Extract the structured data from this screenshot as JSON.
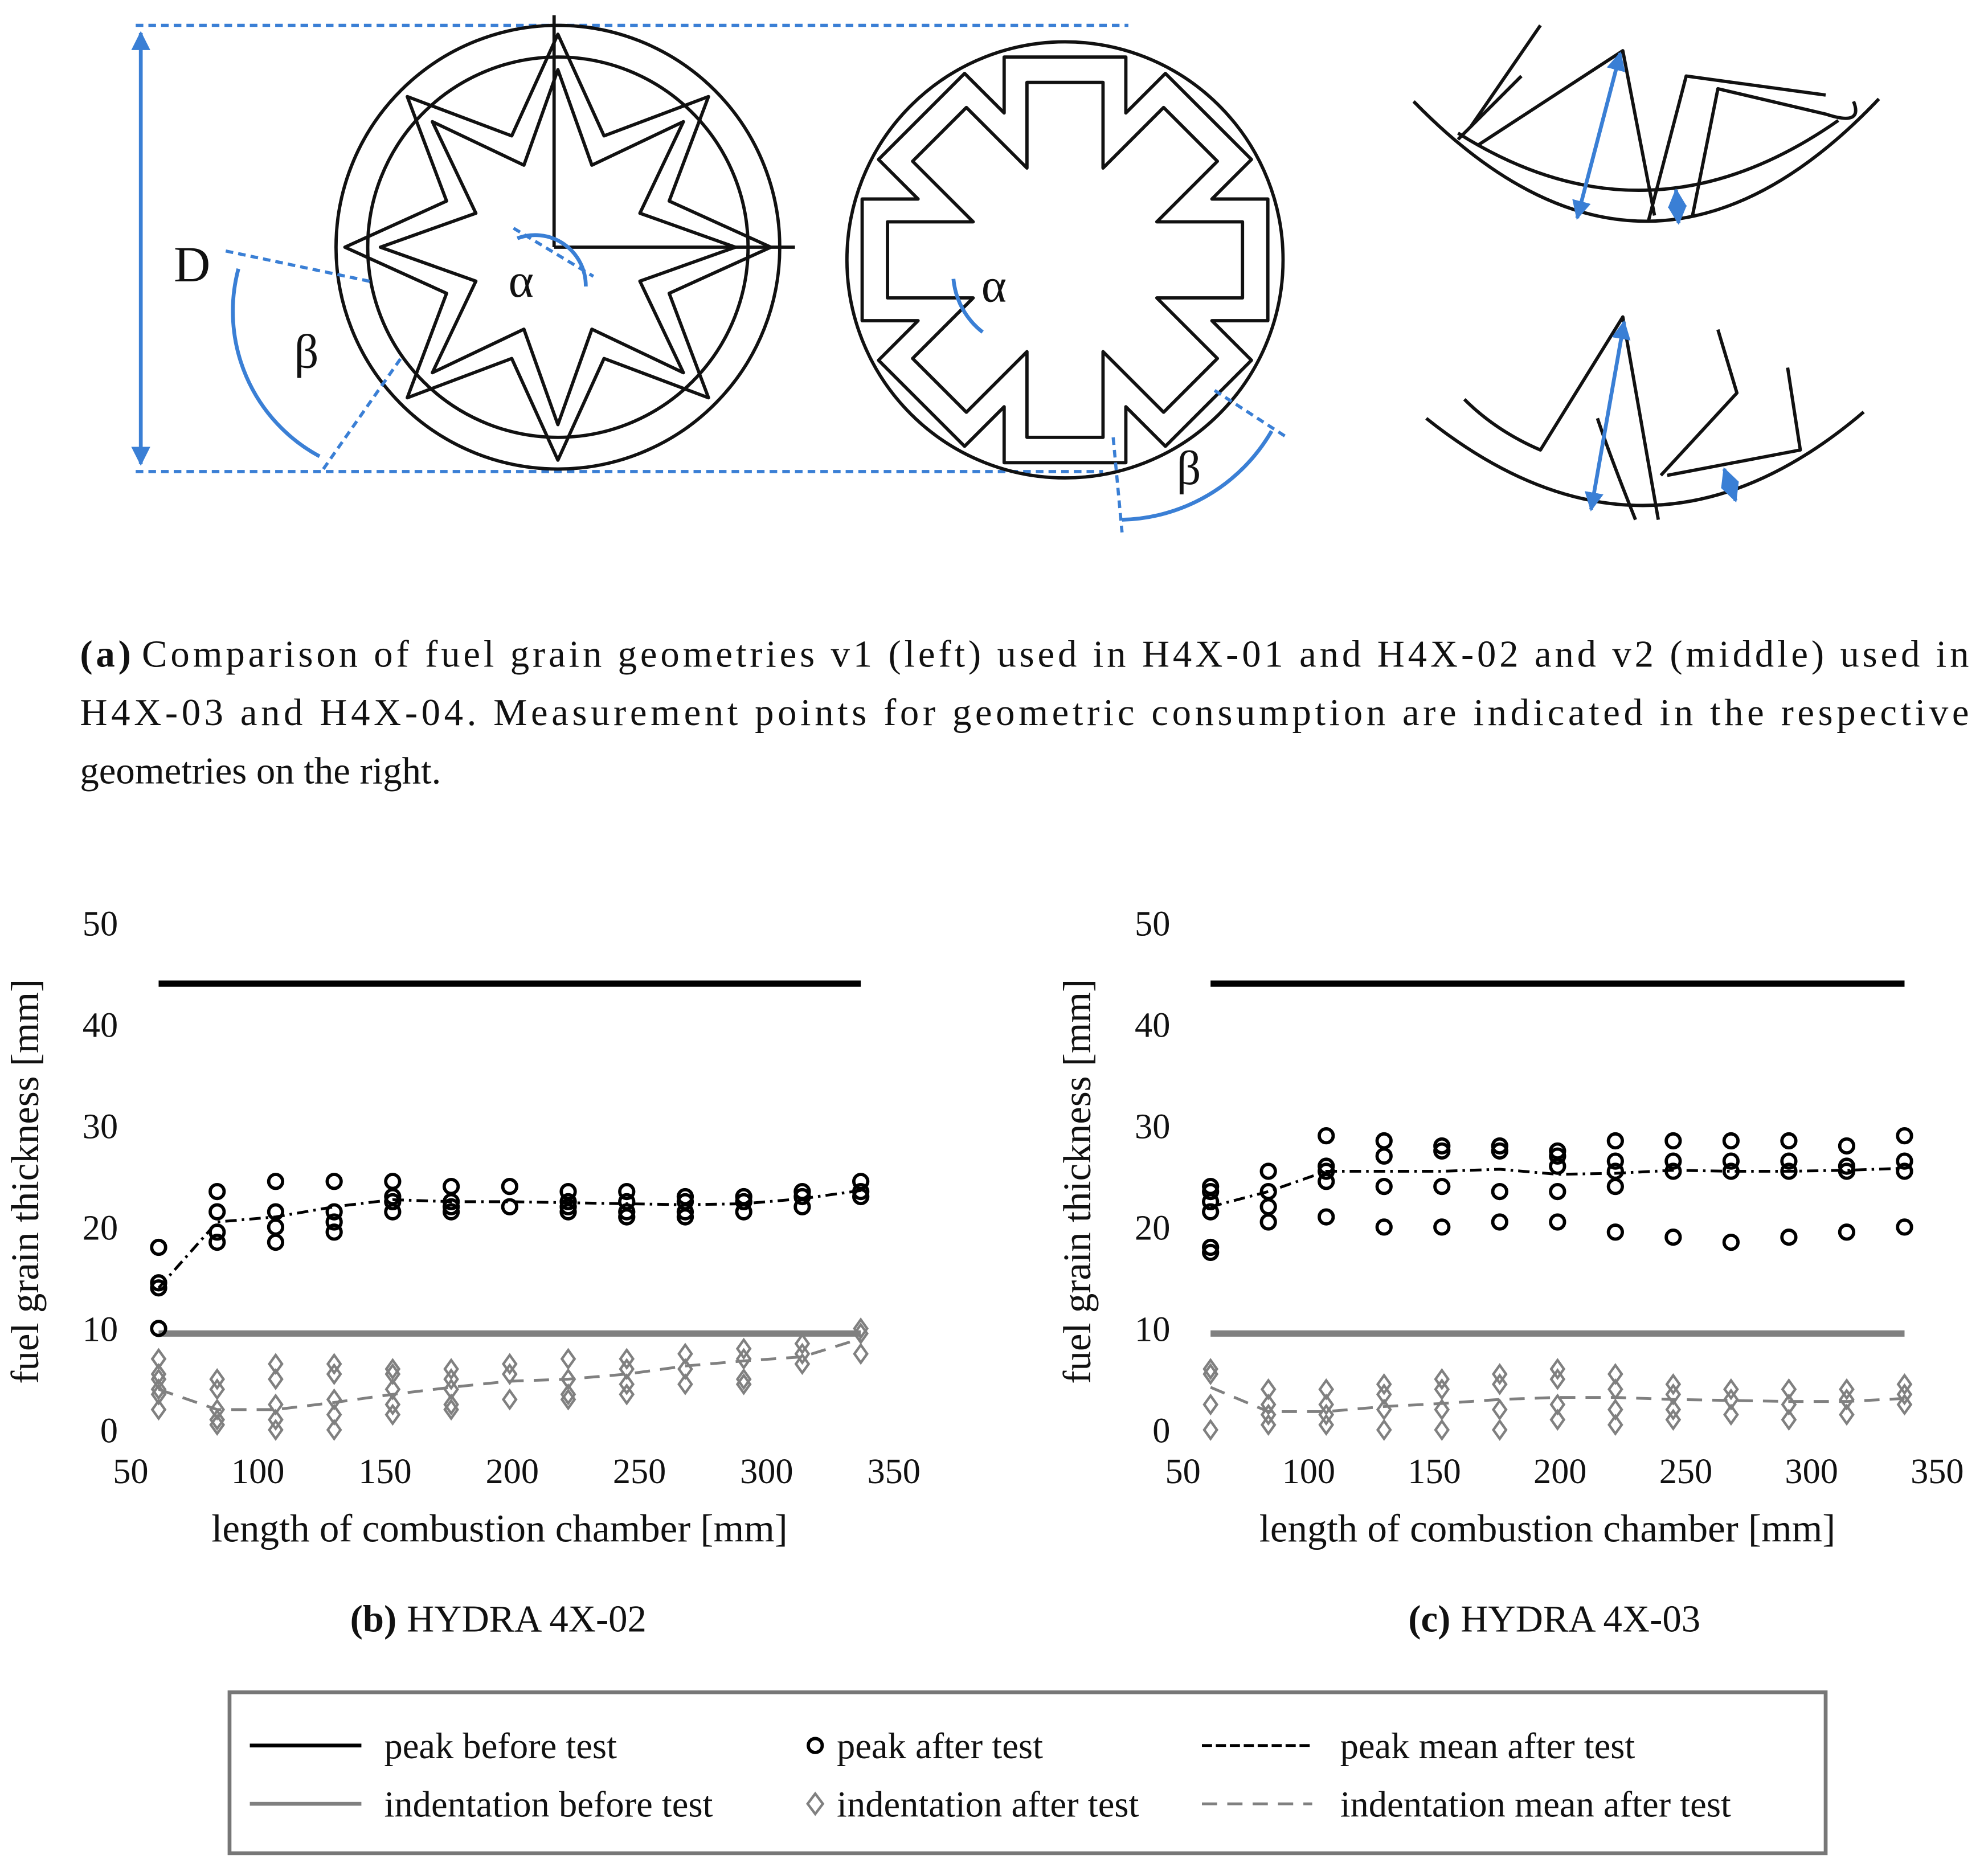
{
  "figure_a": {
    "annotations": [
      "D",
      "α",
      "β",
      "α",
      "β"
    ],
    "caption_label": "(a)",
    "caption_lines": [
      "Comparison of fuel grain geometries v1 (left) used in H4X-01 and H4X-02 and v2 (middle) used in",
      "H4X-03 and H4X-04. Measurement points for geometric consumption are indicated in the respective",
      "geometries on the right."
    ]
  },
  "chart_data": [
    {
      "type": "scatter",
      "caption_label": "(b)",
      "caption": "HYDRA 4X-02",
      "xlabel": "length of combustion chamber [mm]",
      "ylabel": "fuel grain thickness [mm]",
      "xlim": [
        50,
        350
      ],
      "xticks": [
        50,
        100,
        150,
        200,
        250,
        300,
        350
      ],
      "ylim": [
        0,
        50
      ],
      "yticks": [
        0,
        10,
        20,
        30,
        40,
        50
      ],
      "series": [
        {
          "name": "peak before test",
          "color": "#000000",
          "line": "solid",
          "marker": "none",
          "x": [
            61,
            337
          ],
          "values": [
            44,
            44
          ]
        },
        {
          "name": "peak after test",
          "color": "#000000",
          "line": "none",
          "marker": "circle",
          "x": [
            61,
            61,
            61,
            61,
            84,
            84,
            84,
            84,
            107,
            107,
            107,
            107,
            130,
            130,
            130,
            130,
            153,
            153,
            153,
            153,
            176,
            176,
            176,
            176,
            199,
            199,
            222,
            222,
            222,
            222,
            245,
            245,
            245,
            245,
            268,
            268,
            268,
            268,
            291,
            291,
            291,
            314,
            314,
            314,
            337,
            337,
            337
          ],
          "values": [
            18,
            14.5,
            14,
            10,
            23.5,
            21.5,
            19.5,
            18.5,
            24.5,
            21.5,
            20,
            18.5,
            24.5,
            21.5,
            20.5,
            19.5,
            24.5,
            23,
            22.5,
            21.5,
            24,
            22.5,
            22,
            21.5,
            24,
            22,
            23.5,
            22.5,
            22,
            21.5,
            23.5,
            22.5,
            21.5,
            21,
            23,
            22.5,
            21.5,
            21,
            23,
            22.5,
            21.5,
            23.5,
            23,
            22,
            24.5,
            23.5,
            23
          ]
        },
        {
          "name": "peak mean after test",
          "color": "#000000",
          "line": "dashdot",
          "marker": "none",
          "x": [
            61,
            84,
            107,
            130,
            153,
            176,
            199,
            222,
            245,
            268,
            291,
            314,
            337
          ],
          "values": [
            14,
            20.5,
            21,
            22,
            22.7,
            22.5,
            22.5,
            22.4,
            22.3,
            22.2,
            22.3,
            22.8,
            23.6
          ]
        },
        {
          "name": "indentation before test",
          "color": "#808080",
          "line": "solid",
          "marker": "none",
          "x": [
            61,
            337
          ],
          "values": [
            9.5,
            9.5
          ]
        },
        {
          "name": "indentation after test",
          "color": "#808080",
          "line": "none",
          "marker": "diamond",
          "x": [
            61,
            61,
            61,
            61,
            61,
            61,
            84,
            84,
            84,
            84,
            84,
            107,
            107,
            107,
            107,
            107,
            130,
            130,
            130,
            130,
            130,
            153,
            153,
            153,
            153,
            153,
            176,
            176,
            176,
            176,
            176,
            199,
            199,
            199,
            222,
            222,
            222,
            222,
            245,
            245,
            245,
            245,
            268,
            268,
            268,
            291,
            291,
            291,
            291,
            314,
            314,
            314,
            337,
            337,
            337
          ],
          "values": [
            7,
            5.5,
            5,
            4,
            3.5,
            2,
            5,
            4,
            2,
            1,
            0.5,
            6.5,
            5,
            2.5,
            1,
            0,
            6.5,
            5.5,
            3,
            1.5,
            0,
            6,
            5.5,
            4,
            2.5,
            1.5,
            6,
            5,
            4,
            2.5,
            2,
            6.5,
            5.5,
            3,
            7,
            5,
            3.5,
            3,
            7,
            6,
            4.5,
            3.5,
            7.5,
            6,
            4.5,
            8,
            7,
            5,
            4.5,
            8.5,
            7.5,
            6.5,
            10,
            9.5,
            7.5
          ]
        },
        {
          "name": "indentation mean after test",
          "color": "#808080",
          "line": "dashed",
          "marker": "none",
          "x": [
            61,
            84,
            107,
            130,
            153,
            176,
            199,
            222,
            245,
            268,
            291,
            314,
            337
          ],
          "values": [
            4,
            2,
            2,
            2.7,
            3.5,
            4.2,
            4.8,
            5,
            5.5,
            6.3,
            6.8,
            7.2,
            9
          ]
        }
      ]
    },
    {
      "type": "scatter",
      "caption_label": "(c)",
      "caption": "HYDRA 4X-03",
      "xlabel": "length of combustion chamber [mm]",
      "ylabel": "fuel grain thickness [mm]",
      "xlim": [
        50,
        350
      ],
      "xticks": [
        50,
        100,
        150,
        200,
        250,
        300,
        350
      ],
      "ylim": [
        0,
        50
      ],
      "yticks": [
        0,
        10,
        20,
        30,
        40,
        50
      ],
      "series": [
        {
          "color": "#000000",
          "line": "solid",
          "marker": "none",
          "x": [
            61,
            337
          ],
          "values": [
            44,
            44
          ]
        },
        {
          "color": "#000000",
          "line": "none",
          "marker": "circle",
          "x": [
            61,
            61,
            61,
            61,
            61,
            61,
            84,
            84,
            84,
            84,
            107,
            107,
            107,
            107,
            107,
            130,
            130,
            130,
            130,
            153,
            153,
            153,
            153,
            176,
            176,
            176,
            176,
            199,
            199,
            199,
            199,
            199,
            222,
            222,
            222,
            222,
            222,
            245,
            245,
            245,
            245,
            268,
            268,
            268,
            268,
            291,
            291,
            291,
            291,
            314,
            314,
            314,
            314,
            337,
            337,
            337,
            337
          ],
          "values": [
            24,
            23.5,
            22.5,
            21.5,
            18,
            17.5,
            25.5,
            23.5,
            22,
            20.5,
            29,
            26,
            25.5,
            24.5,
            21,
            28.5,
            27,
            24,
            20,
            28,
            27.5,
            24,
            20,
            28,
            27.5,
            23.5,
            20.5,
            27.5,
            27,
            26,
            23.5,
            20.5,
            28.5,
            26.5,
            25.5,
            24,
            19.5,
            28.5,
            26.5,
            25.5,
            19,
            28.5,
            26.5,
            25.5,
            18.5,
            28.5,
            26.5,
            25.5,
            19,
            28,
            26,
            25.5,
            19.5,
            29,
            26.5,
            25.5,
            20
          ]
        },
        {
          "color": "#000000",
          "line": "dashdot",
          "marker": "none",
          "x": [
            61,
            84,
            107,
            130,
            153,
            176,
            199,
            222,
            245,
            268,
            291,
            314,
            337
          ],
          "values": [
            22,
            23.5,
            25.5,
            25.5,
            25.5,
            25.7,
            25.2,
            25.3,
            25.6,
            25.5,
            25.5,
            25.6,
            25.8
          ]
        },
        {
          "color": "#808080",
          "line": "solid",
          "marker": "none",
          "x": [
            61,
            337
          ],
          "values": [
            9.5,
            9.5
          ]
        },
        {
          "color": "#808080",
          "line": "none",
          "marker": "diamond",
          "x": [
            61,
            61,
            61,
            61,
            84,
            84,
            84,
            84,
            107,
            107,
            107,
            107,
            130,
            130,
            130,
            130,
            153,
            153,
            153,
            153,
            176,
            176,
            176,
            176,
            199,
            199,
            199,
            199,
            222,
            222,
            222,
            222,
            245,
            245,
            245,
            245,
            268,
            268,
            268,
            291,
            291,
            291,
            314,
            314,
            314,
            337,
            337,
            337
          ],
          "values": [
            6,
            5.5,
            2.5,
            0,
            4,
            2.5,
            1.5,
            0.5,
            4,
            2.5,
            1.5,
            0.5,
            4.5,
            3.5,
            2,
            0,
            5,
            4,
            2,
            0,
            5.5,
            4.5,
            2,
            0,
            6,
            5,
            2.5,
            1,
            5.5,
            4,
            2,
            0.5,
            4.5,
            3.5,
            2,
            1,
            4,
            3,
            1.5,
            4,
            2.5,
            1,
            4,
            3,
            1.5,
            4.5,
            3.5,
            2.5
          ]
        },
        {
          "color": "#808080",
          "line": "dashed",
          "marker": "none",
          "x": [
            61,
            84,
            107,
            130,
            153,
            176,
            199,
            222,
            245,
            268,
            291,
            314,
            337
          ],
          "values": [
            4.2,
            1.8,
            1.8,
            2.3,
            2.6,
            3,
            3.2,
            3.2,
            3,
            2.9,
            2.8,
            2.8,
            3.1
          ]
        }
      ]
    }
  ]
}
